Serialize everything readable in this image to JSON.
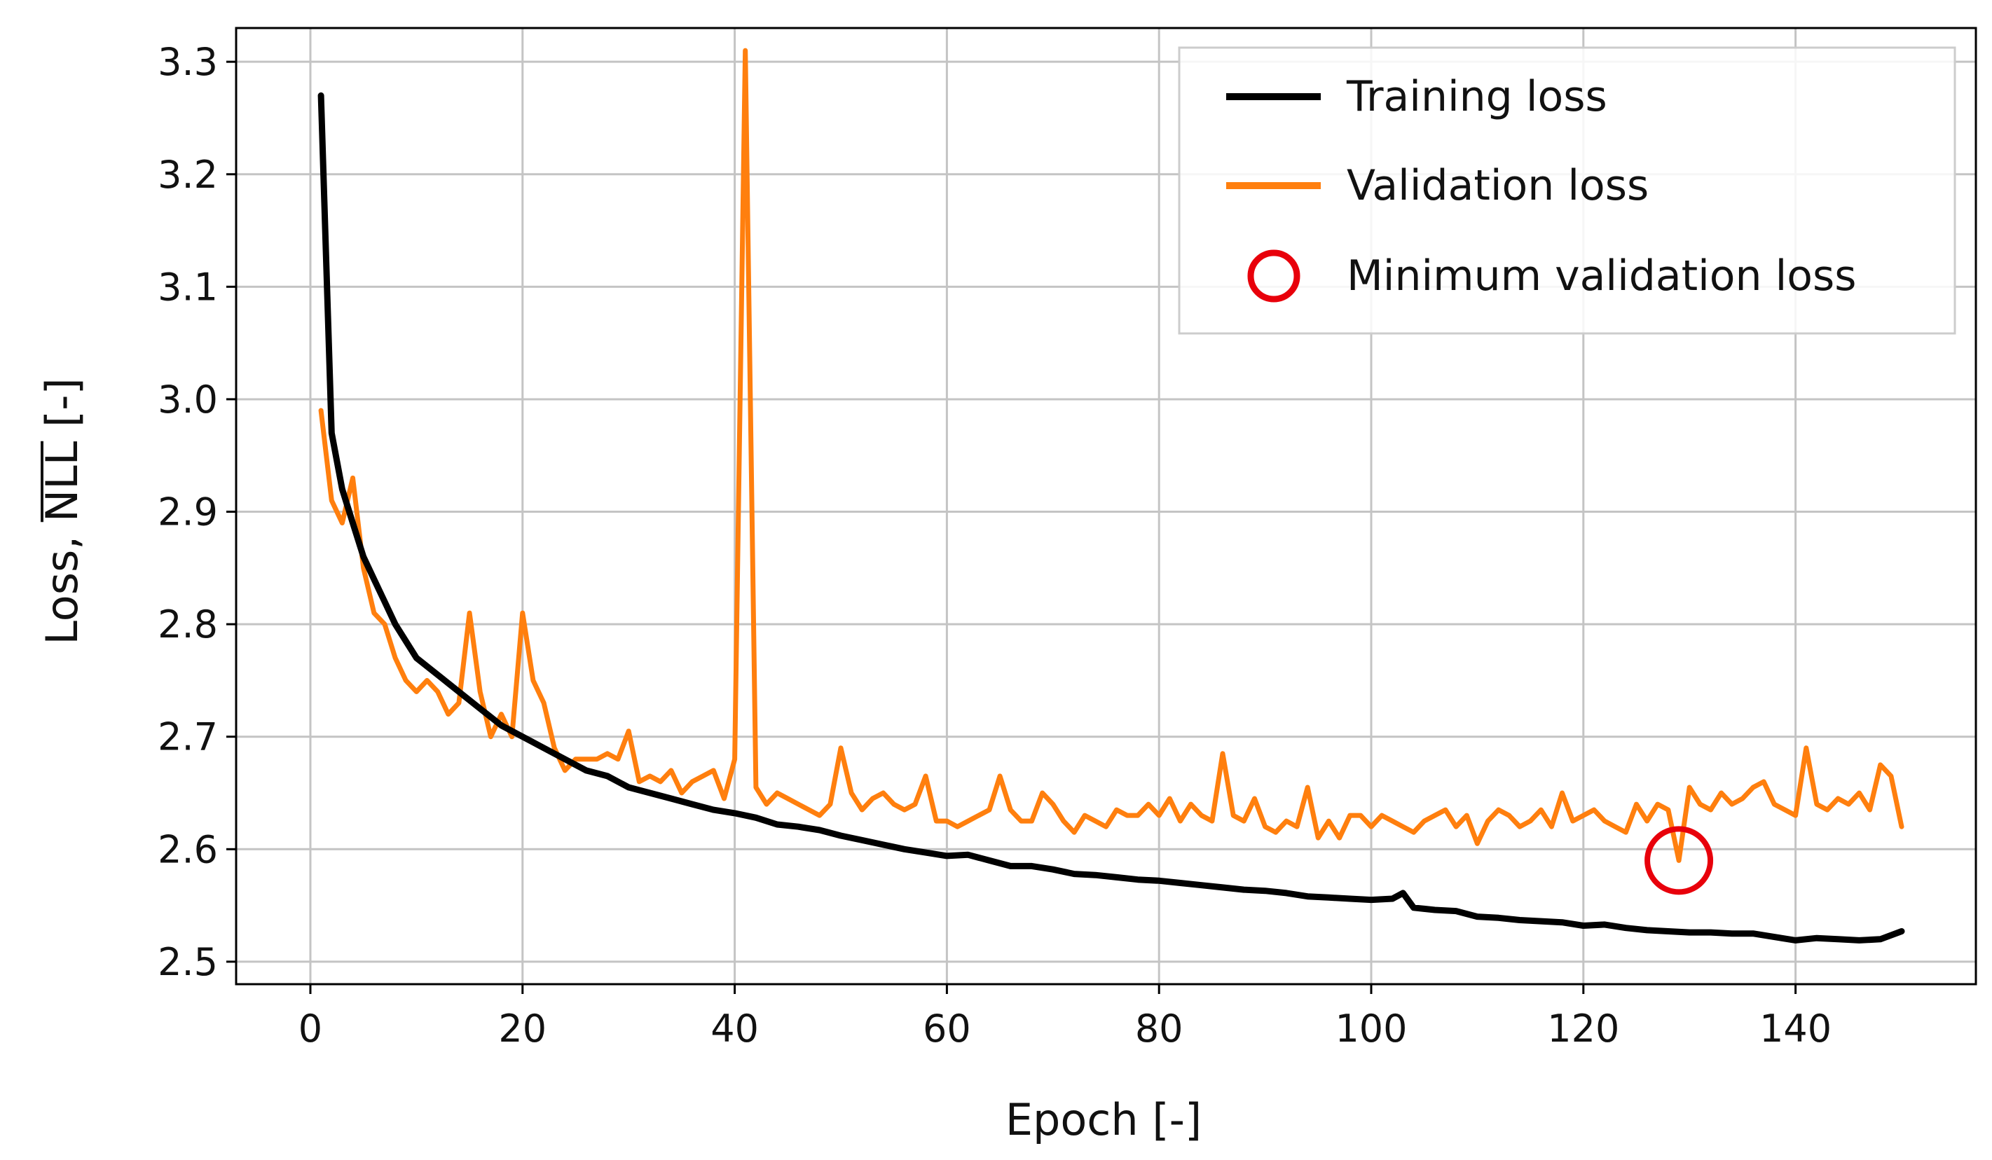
{
  "chart_data": {
    "type": "line",
    "title": "",
    "xlabel": "Epoch [-]",
    "ylabel_prefix": "Loss, ",
    "ylabel_overlined": "NLL",
    "ylabel_suffix": " [-]",
    "xlim": [
      -7,
      157
    ],
    "ylim": [
      2.48,
      3.33
    ],
    "xticks": [
      0,
      20,
      40,
      60,
      80,
      100,
      120,
      140
    ],
    "yticks": [
      2.5,
      2.6,
      2.7,
      2.8,
      2.9,
      3.0,
      3.1,
      3.2,
      3.3
    ],
    "ytick_labels": [
      "2.5",
      "2.6",
      "2.7",
      "2.8",
      "2.9",
      "3.0",
      "3.1",
      "3.2",
      "3.3"
    ],
    "grid": true,
    "legend_position": "top-right",
    "legend": {
      "training": "Training loss",
      "validation": "Validation loss",
      "minimum": "Minimum  validation loss"
    },
    "colors": {
      "training": "#000000",
      "validation": "#ff7f0e",
      "minimum": "#e8000b"
    },
    "series": [
      {
        "name": "Training loss",
        "x": [
          1,
          2,
          3,
          4,
          5,
          6,
          7,
          8,
          9,
          10,
          12,
          14,
          16,
          18,
          20,
          22,
          24,
          26,
          28,
          30,
          32,
          34,
          36,
          38,
          40,
          42,
          44,
          46,
          48,
          50,
          52,
          54,
          56,
          58,
          60,
          62,
          64,
          66,
          68,
          70,
          72,
          74,
          76,
          78,
          80,
          82,
          84,
          86,
          88,
          90,
          92,
          94,
          96,
          98,
          100,
          102,
          103,
          104,
          106,
          108,
          110,
          112,
          114,
          116,
          118,
          120,
          122,
          124,
          126,
          128,
          130,
          132,
          134,
          136,
          138,
          140,
          142,
          144,
          146,
          148,
          150
        ],
        "values": [
          3.27,
          2.97,
          2.92,
          2.89,
          2.86,
          2.84,
          2.82,
          2.8,
          2.785,
          2.77,
          2.755,
          2.74,
          2.725,
          2.71,
          2.7,
          2.69,
          2.68,
          2.67,
          2.665,
          2.655,
          2.65,
          2.645,
          2.64,
          2.635,
          2.632,
          2.628,
          2.622,
          2.62,
          2.617,
          2.612,
          2.608,
          2.604,
          2.6,
          2.597,
          2.594,
          2.595,
          2.59,
          2.585,
          2.585,
          2.582,
          2.578,
          2.577,
          2.575,
          2.573,
          2.572,
          2.57,
          2.568,
          2.566,
          2.564,
          2.563,
          2.561,
          2.558,
          2.557,
          2.556,
          2.555,
          2.556,
          2.561,
          2.548,
          2.546,
          2.545,
          2.54,
          2.539,
          2.537,
          2.536,
          2.535,
          2.532,
          2.533,
          2.53,
          2.528,
          2.527,
          2.526,
          2.526,
          2.525,
          2.525,
          2.522,
          2.519,
          2.521,
          2.52,
          2.519,
          2.52,
          2.527
        ]
      },
      {
        "name": "Validation loss",
        "x": [
          1,
          2,
          3,
          4,
          5,
          6,
          7,
          8,
          9,
          10,
          11,
          12,
          13,
          14,
          15,
          16,
          17,
          18,
          19,
          20,
          21,
          22,
          23,
          24,
          25,
          26,
          27,
          28,
          29,
          30,
          31,
          32,
          33,
          34,
          35,
          36,
          37,
          38,
          39,
          40,
          41,
          42,
          43,
          44,
          45,
          46,
          47,
          48,
          49,
          50,
          51,
          52,
          53,
          54,
          55,
          56,
          57,
          58,
          59,
          60,
          61,
          62,
          63,
          64,
          65,
          66,
          67,
          68,
          69,
          70,
          71,
          72,
          73,
          74,
          75,
          76,
          77,
          78,
          79,
          80,
          81,
          82,
          83,
          84,
          85,
          86,
          87,
          88,
          89,
          90,
          91,
          92,
          93,
          94,
          95,
          96,
          97,
          98,
          99,
          100,
          101,
          102,
          103,
          104,
          105,
          106,
          107,
          108,
          109,
          110,
          111,
          112,
          113,
          114,
          115,
          116,
          117,
          118,
          119,
          120,
          121,
          122,
          123,
          124,
          125,
          126,
          127,
          128,
          129,
          130,
          131,
          132,
          133,
          134,
          135,
          136,
          137,
          138,
          139,
          140,
          141,
          142,
          143,
          144,
          145,
          146,
          147,
          148,
          149,
          150
        ],
        "values": [
          2.99,
          2.91,
          2.89,
          2.93,
          2.85,
          2.81,
          2.8,
          2.77,
          2.75,
          2.74,
          2.75,
          2.74,
          2.72,
          2.73,
          2.81,
          2.74,
          2.7,
          2.72,
          2.7,
          2.81,
          2.75,
          2.73,
          2.69,
          2.67,
          2.68,
          2.68,
          2.68,
          2.685,
          2.68,
          2.705,
          2.66,
          2.665,
          2.66,
          2.67,
          2.65,
          2.66,
          2.665,
          2.67,
          2.645,
          2.68,
          3.31,
          2.655,
          2.64,
          2.65,
          2.645,
          2.64,
          2.635,
          2.63,
          2.64,
          2.69,
          2.65,
          2.635,
          2.645,
          2.65,
          2.64,
          2.635,
          2.64,
          2.665,
          2.625,
          2.625,
          2.62,
          2.625,
          2.63,
          2.635,
          2.665,
          2.635,
          2.625,
          2.625,
          2.65,
          2.64,
          2.625,
          2.615,
          2.63,
          2.625,
          2.62,
          2.635,
          2.63,
          2.63,
          2.64,
          2.63,
          2.645,
          2.625,
          2.64,
          2.63,
          2.625,
          2.685,
          2.63,
          2.625,
          2.645,
          2.62,
          2.615,
          2.625,
          2.62,
          2.655,
          2.61,
          2.625,
          2.61,
          2.63,
          2.63,
          2.62,
          2.63,
          2.625,
          2.62,
          2.615,
          2.625,
          2.63,
          2.635,
          2.62,
          2.63,
          2.605,
          2.625,
          2.635,
          2.63,
          2.62,
          2.625,
          2.635,
          2.62,
          2.65,
          2.625,
          2.63,
          2.635,
          2.625,
          2.62,
          2.615,
          2.64,
          2.625,
          2.64,
          2.635,
          2.59,
          2.655,
          2.64,
          2.635,
          2.65,
          2.64,
          2.645,
          2.655,
          2.66,
          2.64,
          2.635,
          2.63,
          2.69,
          2.64,
          2.635,
          2.645,
          2.64,
          2.65,
          2.635,
          2.675,
          2.665,
          2.62
        ]
      }
    ],
    "minimum_point": {
      "x": 129,
      "y": 2.59
    }
  }
}
